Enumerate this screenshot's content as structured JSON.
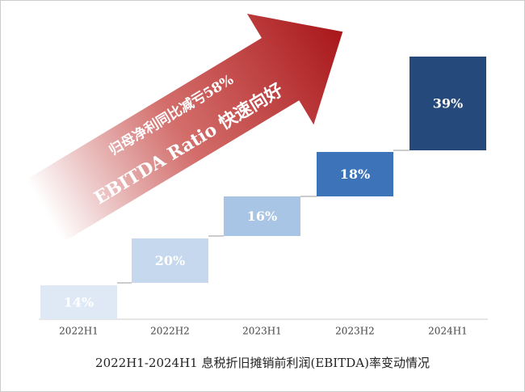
{
  "chart_data": {
    "type": "step",
    "title": "2022H1-2024H1 息税折旧摊销前利润(EBITDA)率变动情况",
    "annotations": [
      "归母净利同比减亏58%",
      "EBITDA Ratio 快速向好"
    ],
    "categories": [
      "2022H1",
      "2022H2",
      "2023H1",
      "2023H2",
      "2024H1"
    ],
    "values": [
      14,
      20,
      16,
      18,
      39
    ],
    "value_labels": [
      "14%",
      "20%",
      "16%",
      "18%",
      "39%"
    ],
    "colors": [
      "#dfe9f5",
      "#c6d8ee",
      "#a8c5e6",
      "#3d74b9",
      "#25497a"
    ]
  }
}
